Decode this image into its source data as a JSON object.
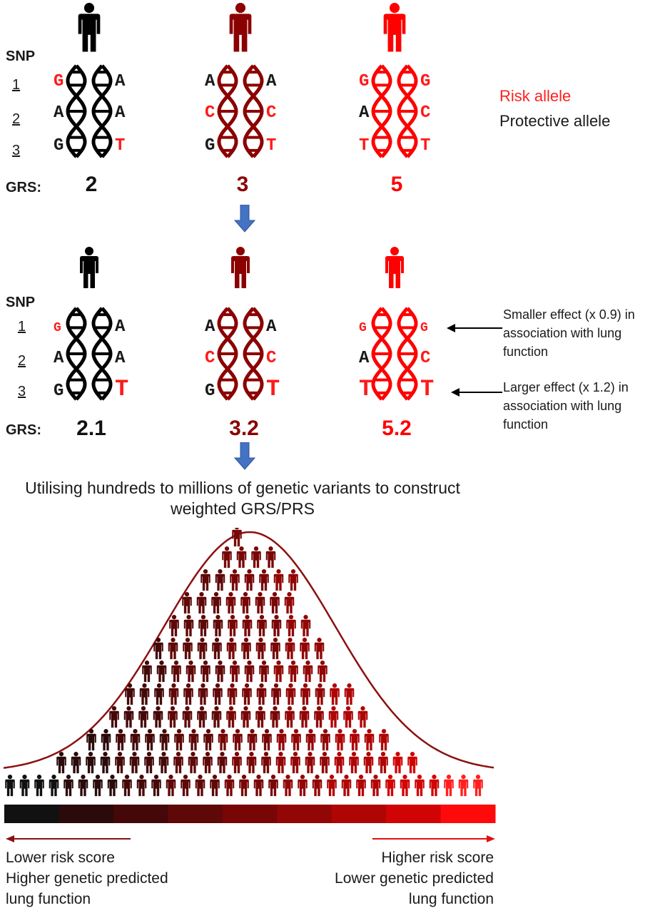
{
  "colors": {
    "black": "#000000",
    "dark_red": "#8b0000",
    "red": "#ff0000",
    "arrow_blue": "#4472c4",
    "curve": "#8b1010",
    "gradient": [
      "#111111",
      "#2a0a0a",
      "#440808",
      "#5e0808",
      "#780606",
      "#920606",
      "#b00505",
      "#d00404",
      "#ff0a0a"
    ]
  },
  "icons": [
    "person-icon",
    "dna-helix-icon",
    "down-arrow-icon",
    "left-arrow-icon",
    "right-arrow-icon"
  ],
  "panel1": {
    "snp_label": "SNP",
    "snp_numbers": [
      "1",
      "2",
      "3"
    ],
    "grs_label": "GRS:",
    "persons": [
      {
        "color": "#000000",
        "alleles": [
          [
            "G",
            "A"
          ],
          [
            "A",
            "A"
          ],
          [
            "G",
            "T"
          ]
        ],
        "grs": "2"
      },
      {
        "color": "#8b0000",
        "alleles": [
          [
            "A",
            "A"
          ],
          [
            "C",
            "C"
          ],
          [
            "G",
            "T"
          ]
        ],
        "grs": "3"
      },
      {
        "color": "#ff0000",
        "alleles": [
          [
            "G",
            "G"
          ],
          [
            "A",
            "C"
          ],
          [
            "T",
            "T"
          ]
        ],
        "grs": "5"
      }
    ]
  },
  "legend": {
    "risk": "Risk allele",
    "protective": "Protective allele"
  },
  "panel2": {
    "snp_label": "SNP",
    "snp_numbers": [
      "1",
      "2",
      "3"
    ],
    "grs_label": "GRS:",
    "persons": [
      {
        "color": "#000000",
        "alleles": [
          [
            "G",
            "A"
          ],
          [
            "A",
            "A"
          ],
          [
            "G",
            "T"
          ]
        ],
        "grs": "2.1"
      },
      {
        "color": "#8b0000",
        "alleles": [
          [
            "A",
            "A"
          ],
          [
            "C",
            "C"
          ],
          [
            "G",
            "T"
          ]
        ],
        "grs": "3.2"
      },
      {
        "color": "#ff0000",
        "alleles": [
          [
            "G",
            "G"
          ],
          [
            "A",
            "C"
          ],
          [
            "T",
            "T"
          ]
        ],
        "grs": "5.2"
      }
    ],
    "note_small": "Smaller effect (x 0.9) in association with lung function",
    "note_large": "Larger effect (x 1.2) in association with lung function"
  },
  "caption": "Utilising hundreds to millions of genetic variants to construct weighted GRS/PRS",
  "bottom": {
    "left_line1": "Lower risk score",
    "left_line2": "Higher genetic predicted",
    "left_line3": "lung function",
    "right_line1": "Higher risk score",
    "right_line2": "Lower genetic predicted",
    "right_line3": "lung function"
  }
}
